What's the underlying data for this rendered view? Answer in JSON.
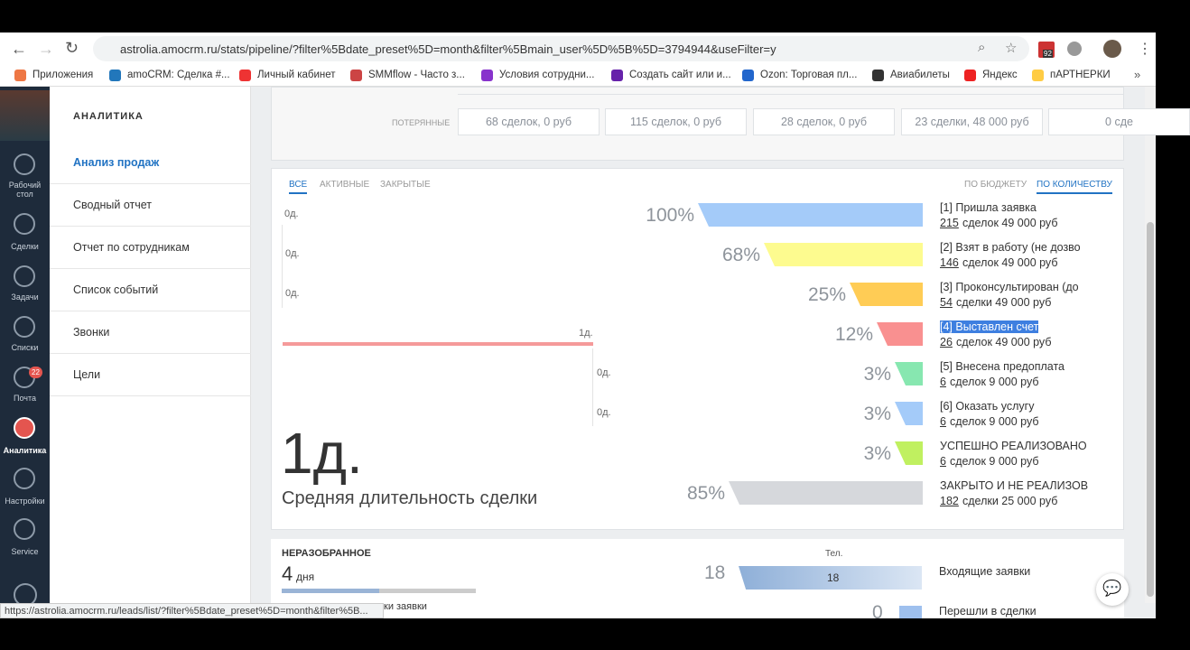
{
  "browser": {
    "url": "astrolia.amocrm.ru/stats/pipeline/?filter%5Bdate_preset%5D=month&filter%5Bmain_user%5D%5B%5D=3794944&useFilter=y",
    "ext_badge": "92",
    "bookmarks": [
      "Приложения",
      "amoCRM: Сделка #...",
      "Личный кабинет",
      "SMMflow - Часто з...",
      "Условия сотрудни...",
      "Создать сайт или и...",
      "Ozon: Торговая пл...",
      "Авиабилеты",
      "Яндекс",
      "пАРТНЕРКИ"
    ],
    "status_url": "https://astrolia.amocrm.ru/leads/list/?filter%5Bdate_preset%5D=month&filter%5B..."
  },
  "nav": {
    "items": [
      "Рабочий стол",
      "Сделки",
      "Задачи",
      "Списки",
      "Почта",
      "Аналитика",
      "Настройки",
      "Service"
    ],
    "mail_badge": "22"
  },
  "submenu": {
    "title": "АНАЛИТИКА",
    "items": [
      "Анализ продаж",
      "Сводный отчет",
      "Отчет по сотрудникам",
      "Список событий",
      "Звонки",
      "Цели"
    ]
  },
  "lost": {
    "label": "ПОТЕРЯННЫЕ",
    "cells": [
      "68 сделок, 0 руб",
      "115 сделок, 0 руб",
      "28 сделок, 0 руб",
      "23 сделки, 48 000 руб",
      "0 сде"
    ]
  },
  "funnel": {
    "tabs": [
      "ВСЕ",
      "АКТИВНЫЕ",
      "ЗАКРЫТЫЕ"
    ],
    "modes": [
      "ПО БЮДЖЕТУ",
      "ПО КОЛИЧЕСТВУ"
    ],
    "stages": [
      {
        "name": "[1] Пришла заявка",
        "count": "215",
        "rest": "сделок 49 000 руб",
        "percent": "100%",
        "duration": "0д."
      },
      {
        "name": "[2] Взят в работу (не дозво",
        "count": "146",
        "rest": "сделок 49 000 руб",
        "percent": "68%",
        "duration": "0д."
      },
      {
        "name": "[3] Проконсультирован (до",
        "count": "54",
        "rest": "сделки 49 000 руб",
        "percent": "25%",
        "duration": "0д."
      },
      {
        "name": "[4] Выставлен счет",
        "count": "26",
        "rest": "сделок 49 000 руб",
        "percent": "12%",
        "duration": "1д."
      },
      {
        "name": "[5] Внесена предоплата",
        "count": "6",
        "rest": "сделок 9 000 руб",
        "percent": "3%",
        "duration": "0д."
      },
      {
        "name": "[6] Оказать услугу",
        "count": "6",
        "rest": "сделок 9 000 руб",
        "percent": "3%",
        "duration": "0д."
      },
      {
        "name": "УСПЕШНО РЕАЛИЗОВАНО",
        "count": "6",
        "rest": "сделок 9 000 руб",
        "percent": "3%"
      },
      {
        "name": "ЗАКРЫТО И НЕ РЕАЛИЗОВ",
        "count": "182",
        "rest": "сделки 25 000 руб",
        "percent": "85%"
      }
    ],
    "avg_value": "1д.",
    "avg_label": "Средняя длительность сделки"
  },
  "unsorted": {
    "title": "НЕРАЗОБРАННОЕ",
    "days_num": "4",
    "days_unit": "дня",
    "hidden_text": "ки заявки",
    "col": "Тел.",
    "rows": [
      {
        "num": "18",
        "bar": "18",
        "label": "Входящие заявки"
      },
      {
        "num": "0",
        "label": "Перешли в сделки"
      }
    ]
  }
}
